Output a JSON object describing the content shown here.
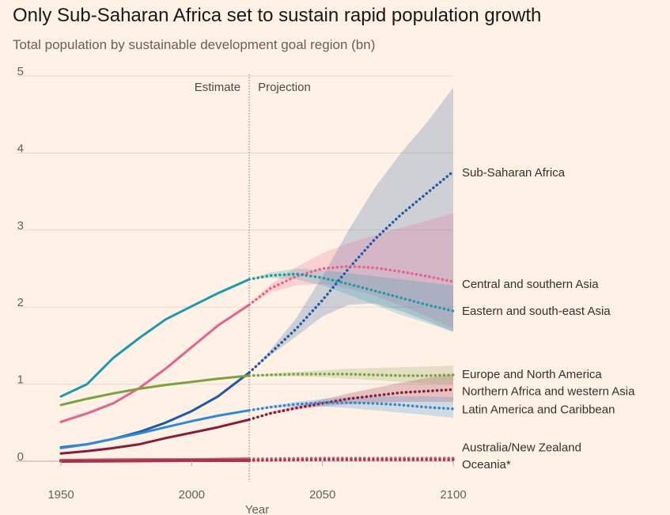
{
  "title": "Only Sub-Saharan Africa set to sustain rapid population growth",
  "subtitle": "Total population by sustainable development goal region (bn)",
  "chart_data": {
    "type": "line",
    "title": "Only Sub-Saharan Africa set to sustain rapid population growth",
    "subtitle": "Total population by sustainable development goal region (bn)",
    "xlabel": "Year",
    "ylabel": "",
    "xlim": [
      1950,
      2100
    ],
    "ylim": [
      0,
      5
    ],
    "xticks": [
      "1950",
      "2000",
      "2050",
      "2100"
    ],
    "yticks": [
      "0",
      "1",
      "2",
      "3",
      "4",
      "5"
    ],
    "split_year": 2022,
    "annotations": {
      "estimate": "Estimate",
      "projection": "Projection"
    },
    "grid": true,
    "series": [
      {
        "name": "Sub-Saharan Africa",
        "color": "#1f5aa6",
        "estimate": [
          [
            1950,
            0.18
          ],
          [
            1960,
            0.22
          ],
          [
            1970,
            0.29
          ],
          [
            1980,
            0.38
          ],
          [
            1990,
            0.5
          ],
          [
            2000,
            0.65
          ],
          [
            2010,
            0.84
          ],
          [
            2022,
            1.15
          ]
        ],
        "projection": [
          [
            2022,
            1.15
          ],
          [
            2030,
            1.4
          ],
          [
            2040,
            1.72
          ],
          [
            2050,
            2.09
          ],
          [
            2060,
            2.5
          ],
          [
            2070,
            2.88
          ],
          [
            2080,
            3.2
          ],
          [
            2090,
            3.48
          ],
          [
            2100,
            3.76
          ]
        ],
        "band": [
          [
            2022,
            1.15,
            1.15
          ],
          [
            2030,
            1.37,
            1.44
          ],
          [
            2040,
            1.62,
            1.86
          ],
          [
            2050,
            1.88,
            2.4
          ],
          [
            2060,
            2.03,
            3.0
          ],
          [
            2070,
            2.05,
            3.55
          ],
          [
            2080,
            1.95,
            4.0
          ],
          [
            2090,
            1.82,
            4.4
          ],
          [
            2100,
            1.68,
            4.85
          ]
        ]
      },
      {
        "name": "Central and southern Asia",
        "color": "#e8608d",
        "estimate": [
          [
            1950,
            0.51
          ],
          [
            1960,
            0.62
          ],
          [
            1970,
            0.75
          ],
          [
            1980,
            0.95
          ],
          [
            1990,
            1.2
          ],
          [
            2000,
            1.48
          ],
          [
            2010,
            1.76
          ],
          [
            2022,
            2.03
          ]
        ],
        "projection": [
          [
            2022,
            2.03
          ],
          [
            2030,
            2.24
          ],
          [
            2040,
            2.4
          ],
          [
            2050,
            2.5
          ],
          [
            2060,
            2.53
          ],
          [
            2070,
            2.51
          ],
          [
            2080,
            2.46
          ],
          [
            2090,
            2.4
          ],
          [
            2100,
            2.33
          ]
        ],
        "band": [
          [
            2022,
            2.03,
            2.03
          ],
          [
            2030,
            2.19,
            2.29
          ],
          [
            2040,
            2.28,
            2.52
          ],
          [
            2050,
            2.3,
            2.7
          ],
          [
            2060,
            2.24,
            2.83
          ],
          [
            2070,
            2.15,
            2.93
          ],
          [
            2080,
            2.02,
            3.03
          ],
          [
            2090,
            1.88,
            3.12
          ],
          [
            2100,
            1.72,
            3.22
          ]
        ]
      },
      {
        "name": "Eastern and south-east Asia",
        "color": "#1b9aaa",
        "estimate": [
          [
            1950,
            0.84
          ],
          [
            1960,
            1.0
          ],
          [
            1970,
            1.34
          ],
          [
            1980,
            1.6
          ],
          [
            1990,
            1.84
          ],
          [
            2000,
            2.01
          ],
          [
            2010,
            2.18
          ],
          [
            2022,
            2.36
          ]
        ],
        "projection": [
          [
            2022,
            2.36
          ],
          [
            2030,
            2.41
          ],
          [
            2040,
            2.43
          ],
          [
            2050,
            2.38
          ],
          [
            2060,
            2.3
          ],
          [
            2070,
            2.21
          ],
          [
            2080,
            2.12
          ],
          [
            2090,
            2.03
          ],
          [
            2100,
            1.95
          ]
        ],
        "band": [
          [
            2022,
            2.36,
            2.36
          ],
          [
            2030,
            2.38,
            2.45
          ],
          [
            2040,
            2.36,
            2.5
          ],
          [
            2050,
            2.28,
            2.48
          ],
          [
            2060,
            2.16,
            2.44
          ],
          [
            2070,
            2.03,
            2.4
          ],
          [
            2080,
            1.9,
            2.36
          ],
          [
            2090,
            1.79,
            2.32
          ],
          [
            2100,
            1.68,
            2.28
          ]
        ]
      },
      {
        "name": "Europe and North America",
        "color": "#7aa241",
        "estimate": [
          [
            1950,
            0.73
          ],
          [
            1960,
            0.81
          ],
          [
            1970,
            0.88
          ],
          [
            1980,
            0.94
          ],
          [
            1990,
            0.99
          ],
          [
            2000,
            1.03
          ],
          [
            2010,
            1.07
          ],
          [
            2022,
            1.11
          ]
        ],
        "projection": [
          [
            2022,
            1.11
          ],
          [
            2030,
            1.12
          ],
          [
            2040,
            1.13
          ],
          [
            2050,
            1.13
          ],
          [
            2060,
            1.13
          ],
          [
            2070,
            1.12
          ],
          [
            2080,
            1.11
          ],
          [
            2090,
            1.11
          ],
          [
            2100,
            1.12
          ]
        ],
        "band": [
          [
            2022,
            1.11,
            1.11
          ],
          [
            2030,
            1.1,
            1.14
          ],
          [
            2040,
            1.1,
            1.16
          ],
          [
            2050,
            1.09,
            1.18
          ],
          [
            2060,
            1.07,
            1.2
          ],
          [
            2070,
            1.05,
            1.21
          ],
          [
            2080,
            1.03,
            1.22
          ],
          [
            2090,
            1.01,
            1.23
          ],
          [
            2100,
            1.0,
            1.24
          ]
        ]
      },
      {
        "name": "Northern Africa and western Asia",
        "color": "#8b1a3a",
        "estimate": [
          [
            1950,
            0.1
          ],
          [
            1960,
            0.13
          ],
          [
            1970,
            0.17
          ],
          [
            1980,
            0.22
          ],
          [
            1990,
            0.3
          ],
          [
            2000,
            0.37
          ],
          [
            2010,
            0.44
          ],
          [
            2022,
            0.54
          ]
        ],
        "projection": [
          [
            2022,
            0.54
          ],
          [
            2030,
            0.62
          ],
          [
            2040,
            0.69
          ],
          [
            2050,
            0.75
          ],
          [
            2060,
            0.81
          ],
          [
            2070,
            0.85
          ],
          [
            2080,
            0.89
          ],
          [
            2090,
            0.91
          ],
          [
            2100,
            0.93
          ]
        ],
        "band": [
          [
            2022,
            0.54,
            0.54
          ],
          [
            2030,
            0.61,
            0.64
          ],
          [
            2040,
            0.67,
            0.72
          ],
          [
            2050,
            0.71,
            0.8
          ],
          [
            2060,
            0.74,
            0.88
          ],
          [
            2070,
            0.76,
            0.95
          ],
          [
            2080,
            0.77,
            1.02
          ],
          [
            2090,
            0.77,
            1.08
          ],
          [
            2100,
            0.77,
            1.13
          ]
        ]
      },
      {
        "name": "Latin America and Caribbean",
        "color": "#2f8ad6",
        "estimate": [
          [
            1950,
            0.17
          ],
          [
            1960,
            0.22
          ],
          [
            1970,
            0.29
          ],
          [
            1980,
            0.36
          ],
          [
            1990,
            0.44
          ],
          [
            2000,
            0.52
          ],
          [
            2010,
            0.59
          ],
          [
            2022,
            0.66
          ]
        ],
        "projection": [
          [
            2022,
            0.66
          ],
          [
            2030,
            0.7
          ],
          [
            2040,
            0.74
          ],
          [
            2050,
            0.76
          ],
          [
            2060,
            0.76
          ],
          [
            2070,
            0.75
          ],
          [
            2080,
            0.73
          ],
          [
            2090,
            0.7
          ],
          [
            2100,
            0.68
          ]
        ],
        "band": [
          [
            2022,
            0.66,
            0.66
          ],
          [
            2030,
            0.69,
            0.72
          ],
          [
            2040,
            0.71,
            0.77
          ],
          [
            2050,
            0.71,
            0.81
          ],
          [
            2060,
            0.69,
            0.83
          ],
          [
            2070,
            0.66,
            0.84
          ],
          [
            2080,
            0.63,
            0.84
          ],
          [
            2090,
            0.6,
            0.84
          ],
          [
            2100,
            0.56,
            0.83
          ]
        ]
      },
      {
        "name": "Australia/New Zealand",
        "color": "#c4627a",
        "estimate": [
          [
            1950,
            0.01
          ],
          [
            1980,
            0.02
          ],
          [
            2000,
            0.02
          ],
          [
            2022,
            0.03
          ]
        ],
        "projection": [
          [
            2022,
            0.03
          ],
          [
            2050,
            0.04
          ],
          [
            2100,
            0.04
          ]
        ],
        "band": []
      },
      {
        "name": "Oceania*",
        "color": "#a83250",
        "estimate": [
          [
            1950,
            0.0
          ],
          [
            2000,
            0.01
          ],
          [
            2022,
            0.01
          ]
        ],
        "projection": [
          [
            2022,
            0.01
          ],
          [
            2050,
            0.02
          ],
          [
            2100,
            0.02
          ]
        ],
        "band": []
      }
    ],
    "labels": [
      {
        "text": "Sub-Saharan Africa",
        "y": 3.75
      },
      {
        "text": "Central and southern Asia",
        "y": 2.3
      },
      {
        "text": "Eastern and south-east Asia",
        "y": 1.95
      },
      {
        "text": "Europe and North America",
        "y": 1.13
      },
      {
        "text": "Northern Africa and western Asia",
        "y": 0.91
      },
      {
        "text": "Latin America and Caribbean",
        "y": 0.67
      },
      {
        "text": "Australia/New Zealand",
        "y": 0.18
      },
      {
        "text": "Oceania*",
        "y": -0.04
      }
    ]
  }
}
